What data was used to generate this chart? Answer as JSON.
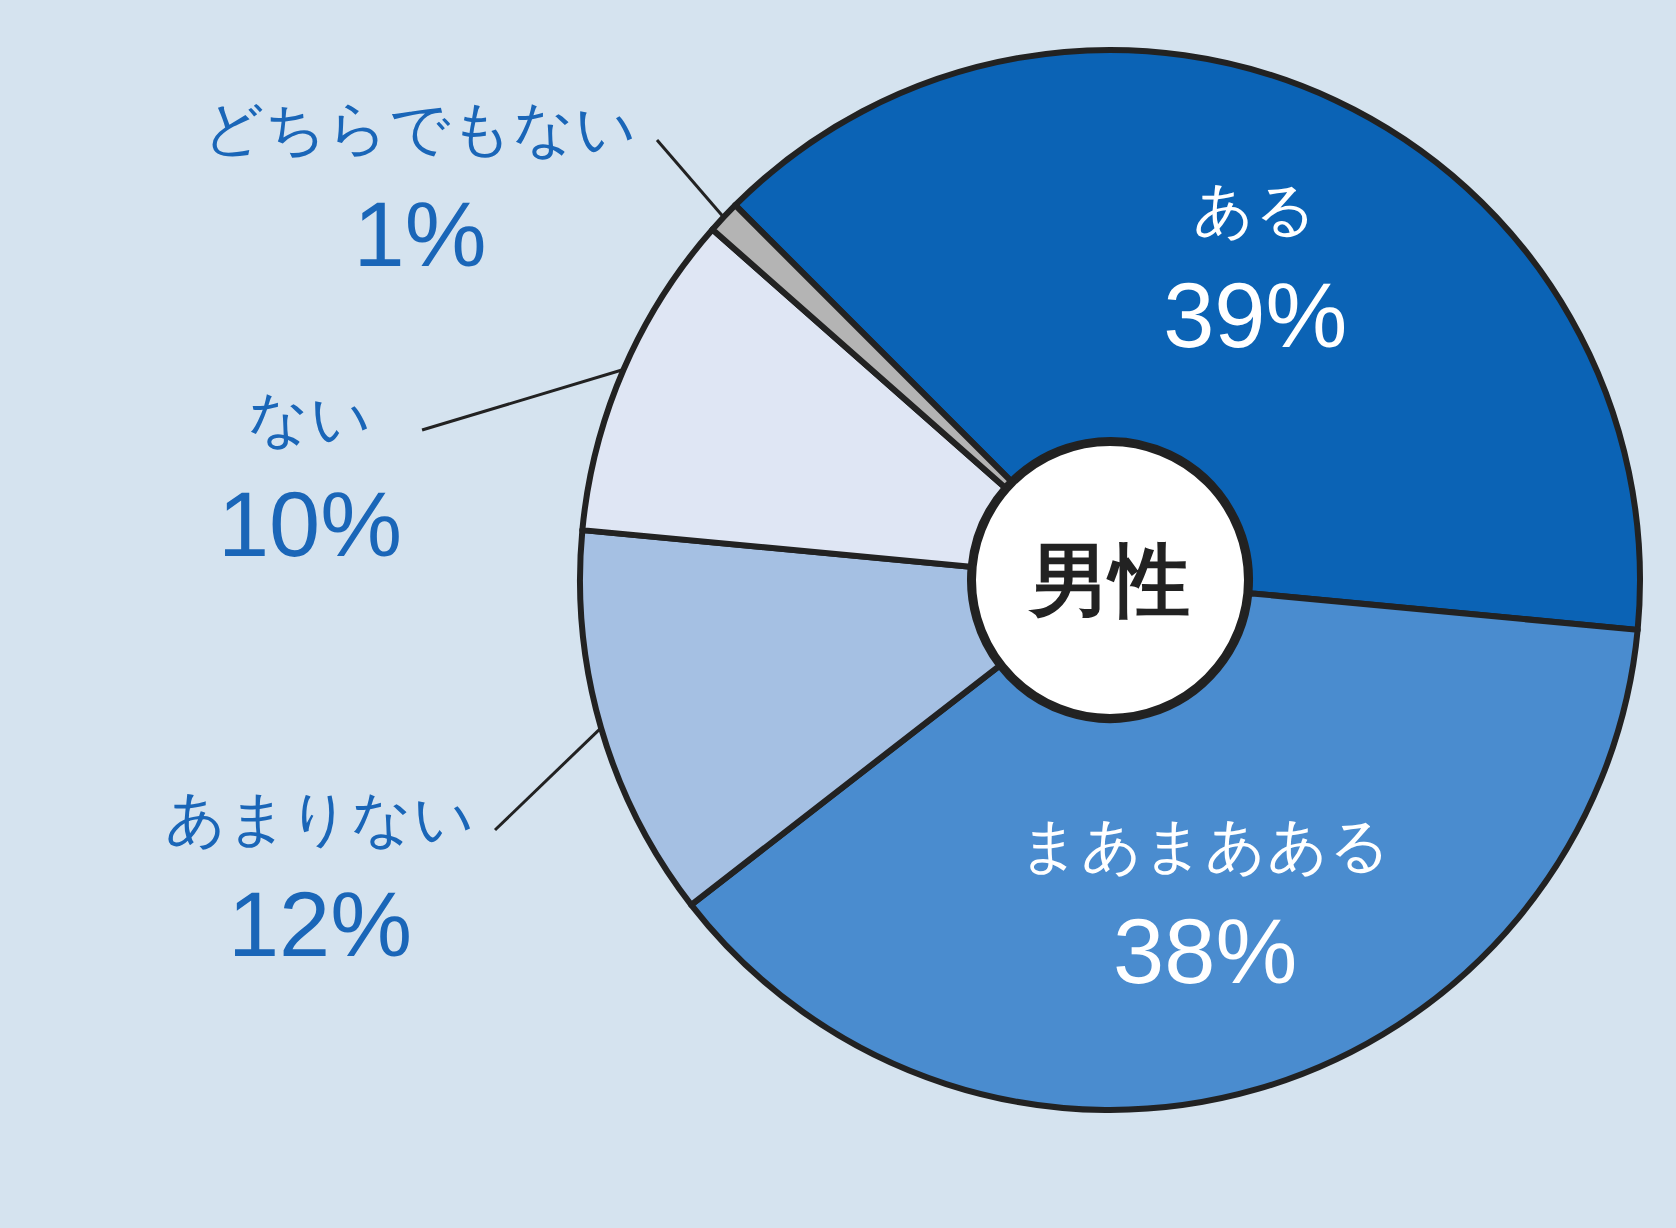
{
  "chart_data": {
    "type": "donut",
    "title": "男性",
    "categories": [
      "ある",
      "まあまあある",
      "あまりない",
      "ない",
      "どちらでもない"
    ],
    "values": [
      39,
      38,
      12,
      10,
      1
    ],
    "colors": [
      "#0b63b5",
      "#4a8ccf",
      "#a5c0e3",
      "#dfe6f4",
      "#b4b4b4"
    ],
    "value_labels": [
      "39%",
      "38%",
      "12%",
      "10%",
      "1%"
    ],
    "legend": false
  }
}
